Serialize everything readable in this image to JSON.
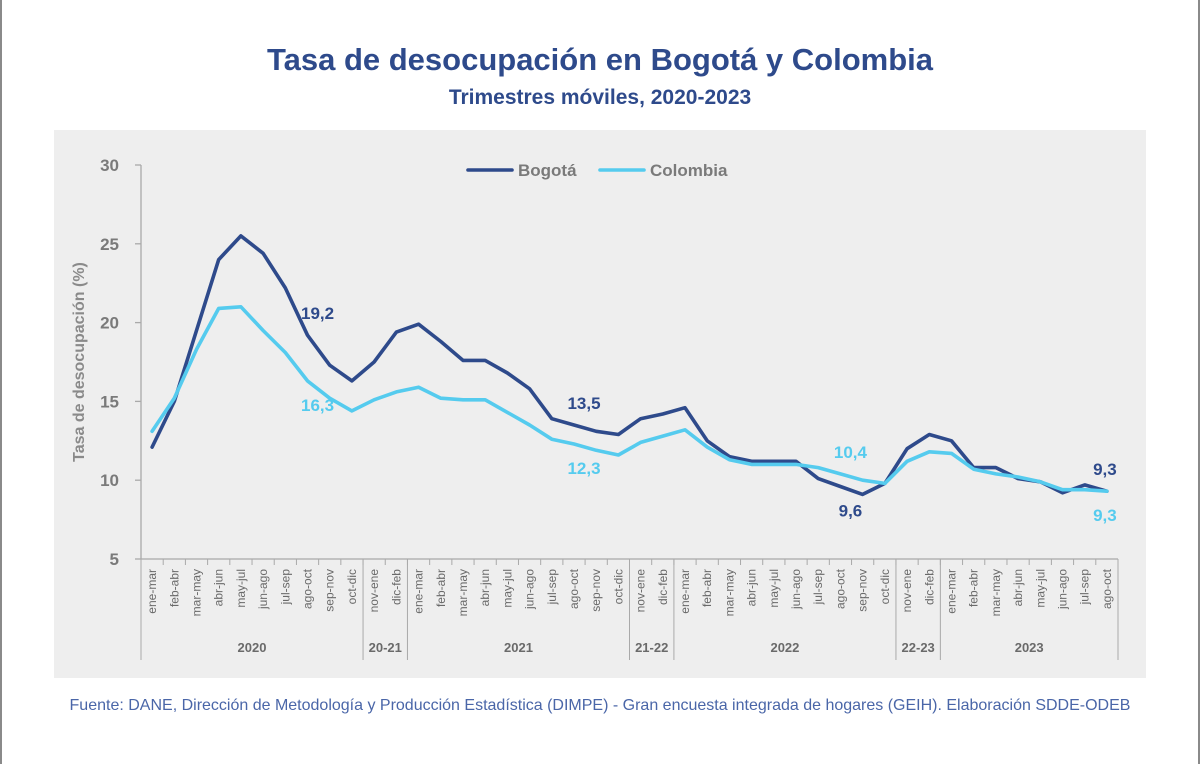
{
  "title": "Tasa de desocupación en Bogotá y Colombia",
  "subtitle": "Trimestres móviles, 2020-2023",
  "source": "Fuente: DANE, Dirección de Metodología y Producción Estadística (DIMPE) - Gran encuesta integrada de hogares (GEIH). Elaboración SDDE-ODEB",
  "chart_data": {
    "type": "line",
    "ylabel": "Tasa de desocupación (%)",
    "ylim": [
      5,
      30
    ],
    "yticks": [
      "5",
      "10",
      "15",
      "20",
      "25",
      "30"
    ],
    "grid": false,
    "legend_position": "top-center",
    "categories": [
      "ene-mar",
      "feb-abr",
      "mar-may",
      "abr-jun",
      "may-jul",
      "jun-ago",
      "jul-sep",
      "ago-oct",
      "sep-nov",
      "oct-dic",
      "nov-ene",
      "dic-feb",
      "ene-mar",
      "feb-abr",
      "mar-may",
      "abr-jun",
      "may-jul",
      "jun-ago",
      "jul-sep",
      "ago-oct",
      "sep-nov",
      "oct-dic",
      "nov-ene",
      "dic-feb",
      "ene-mar",
      "feb-abr",
      "mar-may",
      "abr-jun",
      "may-jul",
      "jun-ago",
      "jul-sep",
      "ago-oct",
      "sep-nov",
      "oct-dic",
      "nov-ene",
      "dic-feb",
      "ene-mar",
      "feb-abr",
      "mar-may",
      "abr-jun",
      "may-jul",
      "jun-ago",
      "jul-sep",
      "ago-oct"
    ],
    "groups": [
      {
        "label": "2020",
        "start": 0,
        "end": 9
      },
      {
        "label": "20-21",
        "start": 10,
        "end": 11
      },
      {
        "label": "2021",
        "start": 12,
        "end": 21
      },
      {
        "label": "21-22",
        "start": 22,
        "end": 23
      },
      {
        "label": "2022",
        "start": 24,
        "end": 33
      },
      {
        "label": "22-23",
        "start": 34,
        "end": 35
      },
      {
        "label": "2023",
        "start": 36,
        "end": 43
      }
    ],
    "series": [
      {
        "name": "Bogotá",
        "color": "#2e4a8b",
        "values": [
          12.1,
          15.0,
          19.5,
          24.0,
          25.5,
          24.4,
          22.2,
          19.2,
          17.3,
          16.3,
          17.5,
          19.4,
          19.9,
          18.8,
          17.6,
          17.6,
          16.8,
          15.8,
          13.9,
          13.5,
          13.1,
          12.9,
          13.9,
          14.2,
          14.6,
          12.5,
          11.5,
          11.2,
          11.2,
          11.2,
          10.1,
          9.6,
          9.1,
          9.8,
          12.0,
          12.9,
          12.5,
          10.8,
          10.8,
          10.1,
          9.9,
          9.2,
          9.7,
          9.3
        ]
      },
      {
        "name": "Colombia",
        "color": "#55cbee",
        "values": [
          13.1,
          15.2,
          18.3,
          20.9,
          21.0,
          19.5,
          18.1,
          16.3,
          15.2,
          14.4,
          15.1,
          15.6,
          15.9,
          15.2,
          15.1,
          15.1,
          14.3,
          13.5,
          12.6,
          12.3,
          11.9,
          11.6,
          12.4,
          12.8,
          13.2,
          12.1,
          11.3,
          11.0,
          11.0,
          11.0,
          10.8,
          10.4,
          10.0,
          9.8,
          11.2,
          11.8,
          11.7,
          10.7,
          10.4,
          10.2,
          9.9,
          9.4,
          9.4,
          9.3
        ]
      }
    ],
    "annotations": [
      {
        "series": 0,
        "index": 7,
        "text": "19,2",
        "position": "above"
      },
      {
        "series": 1,
        "index": 7,
        "text": "16,3",
        "position": "below"
      },
      {
        "series": 0,
        "index": 19,
        "text": "13,5",
        "position": "above"
      },
      {
        "series": 1,
        "index": 19,
        "text": "12,3",
        "position": "below"
      },
      {
        "series": 1,
        "index": 31,
        "text": "10,4",
        "position": "above"
      },
      {
        "series": 0,
        "index": 31,
        "text": "9,6",
        "position": "below"
      },
      {
        "series": 0,
        "index": 43,
        "text": "9,3",
        "position": "above"
      },
      {
        "series": 1,
        "index": 43,
        "text": "9,3",
        "position": "below"
      }
    ]
  }
}
